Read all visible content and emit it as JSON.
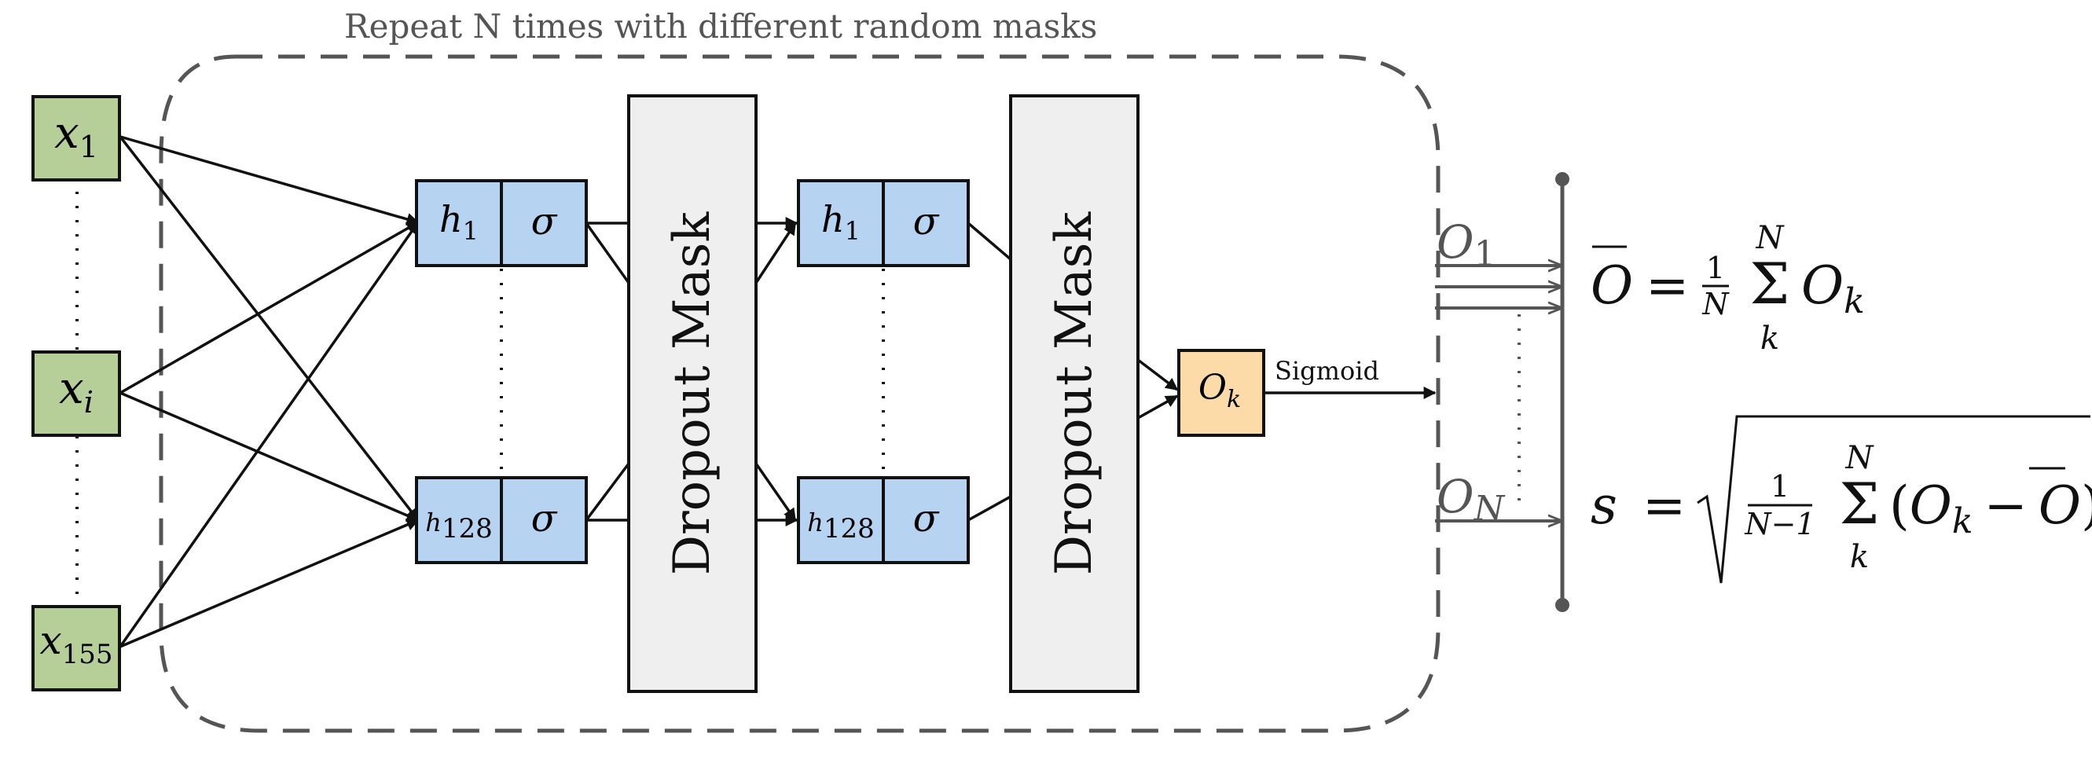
{
  "banner": "Repeat N times with different random masks",
  "inputs": {
    "x1": {
      "base": "x",
      "sub": "1"
    },
    "xi": {
      "base": "x",
      "sub": "i"
    },
    "x155": {
      "base": "x",
      "sub": "155"
    }
  },
  "hidden": {
    "h1": {
      "base": "h",
      "sub": "1"
    },
    "h128": {
      "base": "h",
      "sub": "128"
    },
    "activation": "σ"
  },
  "dropout_label": "Dropout Mask",
  "output": {
    "base": "O",
    "sub": "k"
  },
  "sigmoid_label": "Sigmoid",
  "runs": {
    "first": {
      "base": "O",
      "sub": "1"
    },
    "last": {
      "base": "O",
      "sub": "N"
    }
  },
  "mean_formula": {
    "lhs": "O",
    "eq": "=",
    "frac_num": "1",
    "frac_den": "N",
    "sum_upper": "N",
    "sum_lower": "k",
    "term_base": "O",
    "term_sub": "k"
  },
  "std_formula": {
    "lhs": "s",
    "eq": "=",
    "frac_num": "1",
    "frac_den": "N−1",
    "sum_upper": "N",
    "sum_lower": "k",
    "open": "(",
    "term_base": "O",
    "term_sub": "k",
    "minus": "−",
    "mean": "O",
    "close": ")"
  },
  "colors": {
    "input_fill": "#b6cf98",
    "hidden_fill": "#b7d3f2",
    "dropout_fill": "#efefef",
    "output_fill": "#fcdba9",
    "stroke": "#111111",
    "gray": "#555555"
  }
}
